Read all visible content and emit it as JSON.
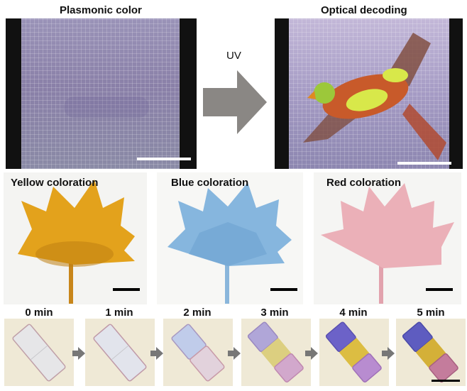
{
  "top": {
    "left_title": "Plasmonic color",
    "right_title": "Optical decoding",
    "arrow_label": "UV"
  },
  "middle": {
    "panels": [
      {
        "title": "Yellow coloration"
      },
      {
        "title": "Blue coloration"
      },
      {
        "title": "Red coloration"
      }
    ]
  },
  "bottom": {
    "times": [
      "0 min",
      "1 min",
      "2 min",
      "3 min",
      "4 min",
      "5 min"
    ]
  },
  "colors": {
    "plasmonic_bg": "#8c84aa",
    "arrow_gray": "#8a8784",
    "yellow_flower": "#e3a21c",
    "blue_flower": "#7fb0d8",
    "red_flower": "#e7a3ad"
  }
}
